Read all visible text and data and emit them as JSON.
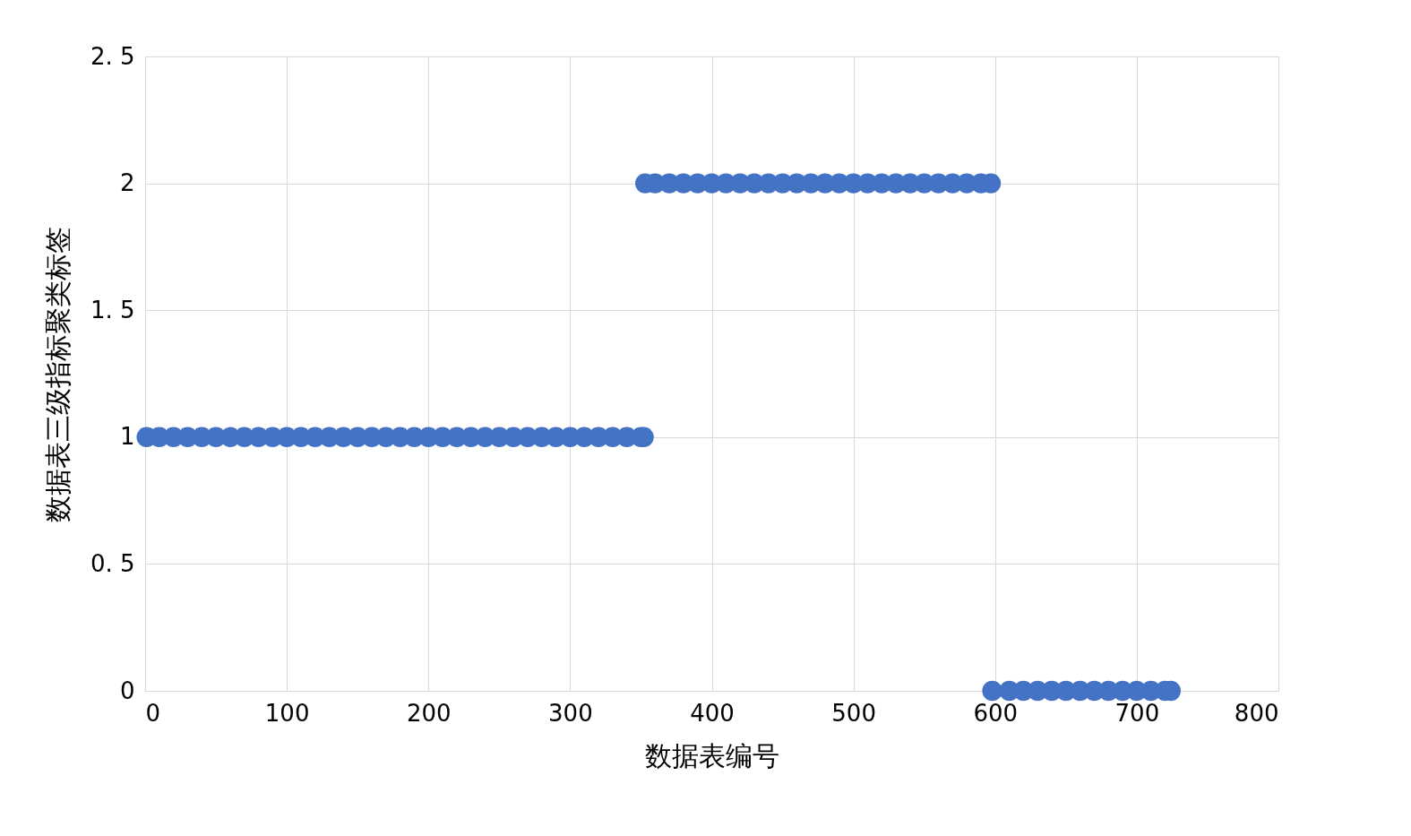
{
  "chart_data": {
    "type": "scatter",
    "xlabel": "数据表编号",
    "ylabel": "数据表三级指标聚类标签",
    "xlim": [
      0,
      800
    ],
    "xticks": [
      0,
      100,
      200,
      300,
      400,
      500,
      600,
      700,
      800
    ],
    "ylim": [
      0,
      2.5
    ],
    "yticks": [
      0,
      {
        "value": 0.5,
        "label": "0. 5"
      },
      1,
      {
        "value": 1.5,
        "label": "1. 5"
      },
      2,
      {
        "value": 2.5,
        "label": "2. 5"
      }
    ],
    "grid": true,
    "marker": "circle",
    "legend": false,
    "series": [
      {
        "color": "#4472c4",
        "x": [
          1,
          10,
          20,
          30,
          40,
          50,
          60,
          70,
          80,
          90,
          100,
          110,
          120,
          130,
          140,
          150,
          160,
          170,
          180,
          190,
          200,
          210,
          220,
          230,
          240,
          250,
          260,
          270,
          280,
          290,
          300,
          310,
          320,
          330,
          340,
          350,
          352,
          353,
          360,
          370,
          380,
          390,
          400,
          410,
          420,
          430,
          440,
          450,
          460,
          470,
          480,
          490,
          500,
          510,
          520,
          530,
          540,
          550,
          560,
          570,
          580,
          590,
          597,
          598,
          610,
          620,
          630,
          640,
          650,
          660,
          670,
          680,
          690,
          700,
          710,
          720,
          724
        ],
        "values": [
          1,
          1,
          1,
          1,
          1,
          1,
          1,
          1,
          1,
          1,
          1,
          1,
          1,
          1,
          1,
          1,
          1,
          1,
          1,
          1,
          1,
          1,
          1,
          1,
          1,
          1,
          1,
          1,
          1,
          1,
          1,
          1,
          1,
          1,
          1,
          1,
          1,
          2,
          2,
          2,
          2,
          2,
          2,
          2,
          2,
          2,
          2,
          2,
          2,
          2,
          2,
          2,
          2,
          2,
          2,
          2,
          2,
          2,
          2,
          2,
          2,
          2,
          2,
          0,
          0,
          0,
          0,
          0,
          0,
          0,
          0,
          0,
          0,
          0,
          0,
          0,
          0
        ]
      }
    ]
  }
}
